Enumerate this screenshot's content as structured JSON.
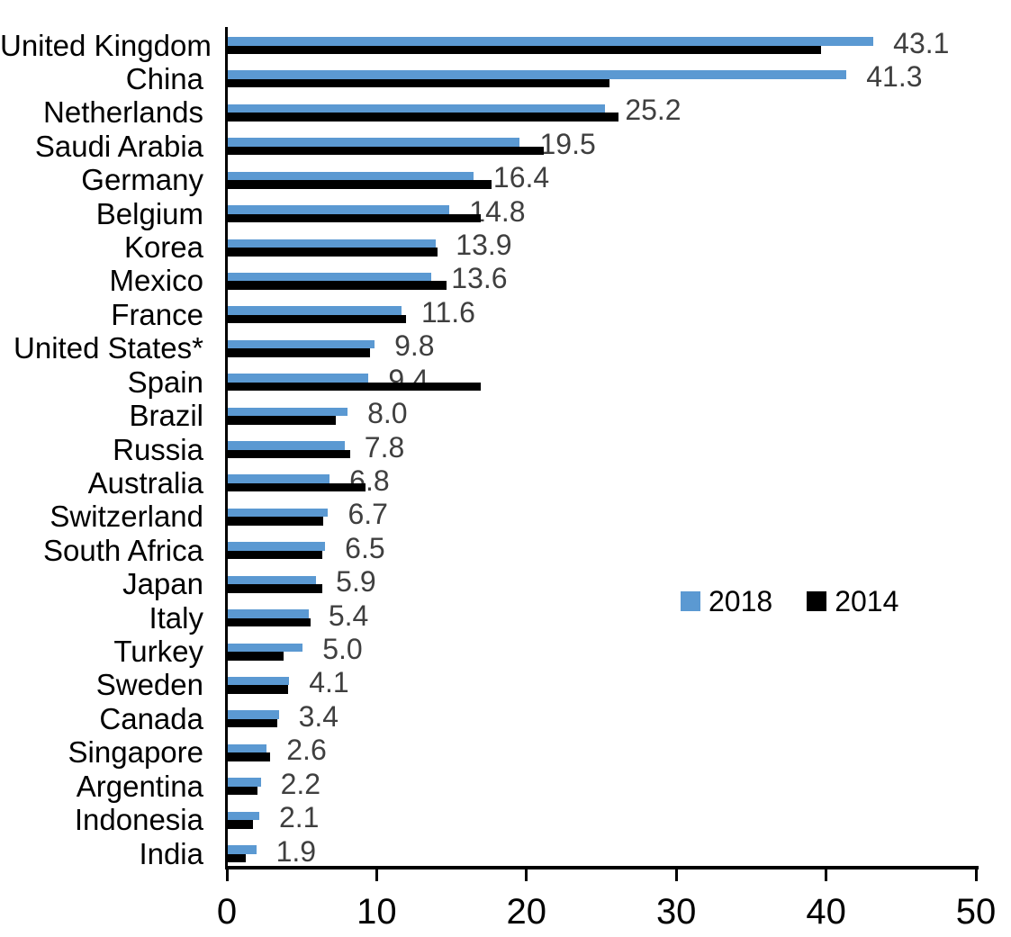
{
  "chart_data": {
    "type": "bar",
    "orientation": "horizontal",
    "title": "",
    "xlabel": "",
    "ylabel": "",
    "xlim": [
      0,
      50
    ],
    "x_ticks": [
      "0",
      "10",
      "20",
      "30",
      "40",
      "50"
    ],
    "grid": false,
    "legend_position": "center-right",
    "value_labels_on": "2018",
    "categories": [
      "United Kingdom",
      "China",
      "Netherlands",
      "Saudi Arabia",
      "Germany",
      "Belgium",
      "Korea",
      "Mexico",
      "France",
      "United States*",
      "Spain",
      "Brazil",
      "Russia",
      "Australia",
      "Switzerland",
      "South Africa",
      "Japan",
      "Italy",
      "Turkey",
      "Sweden",
      "Canada",
      "Singapore",
      "Argentina",
      "Indonesia",
      "India"
    ],
    "series": [
      {
        "name": "2018",
        "color": "#5B99D2",
        "values": [
          43.1,
          41.3,
          25.2,
          19.5,
          16.4,
          14.8,
          13.9,
          13.6,
          11.6,
          9.8,
          9.4,
          8.0,
          7.8,
          6.8,
          6.7,
          6.5,
          5.9,
          5.4,
          5.0,
          4.1,
          3.4,
          2.6,
          2.2,
          2.1,
          1.9
        ]
      },
      {
        "name": "2014",
        "color": "#000000",
        "values": [
          39.6,
          25.5,
          26.1,
          21.1,
          17.6,
          16.9,
          14.0,
          14.6,
          11.9,
          9.5,
          16.9,
          7.2,
          8.2,
          9.2,
          6.4,
          6.3,
          6.3,
          5.5,
          3.7,
          4.0,
          3.3,
          2.8,
          2.0,
          1.7,
          1.2
        ]
      }
    ],
    "data_labels": [
      "43.1",
      "41.3",
      "25.2",
      "19.5",
      "16.4",
      "14.8",
      "13.9",
      "13.6",
      "11.6",
      "9.8",
      "9.4",
      "8.0",
      "7.8",
      "6.8",
      "6.7",
      "6.5",
      "5.9",
      "5.4",
      "5.0",
      "4.1",
      "3.4",
      "2.6",
      "2.2",
      "2.1",
      "1.9"
    ]
  },
  "colors": {
    "background": "#FFFFFF",
    "axis": "#000000",
    "category_label": "#000000",
    "value_label": "#3F3F3F",
    "tick_label": "#000000"
  }
}
